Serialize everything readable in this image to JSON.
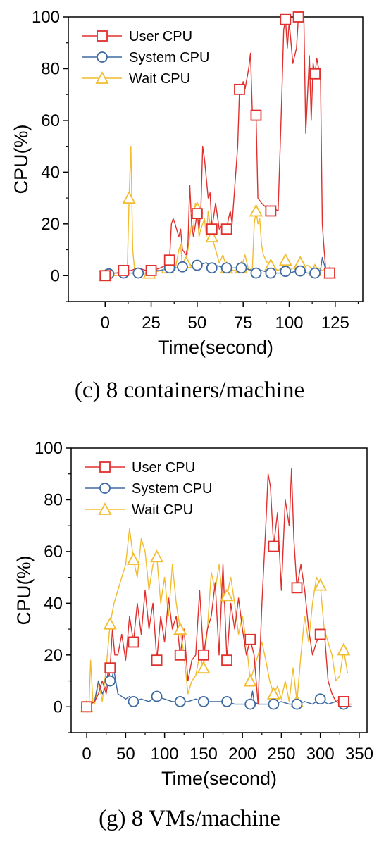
{
  "colors": {
    "user": "#e0302d",
    "system": "#3e6aa3",
    "wait": "#f2bc2e"
  },
  "chart_data": [
    {
      "type": "line",
      "caption": "(c) 8 containers/machine",
      "xlabel": "Time(second)",
      "ylabel": "CPU(%)",
      "xlim": [
        -20,
        140
      ],
      "ylim": [
        -10,
        100
      ],
      "xticks": [
        0,
        25,
        50,
        75,
        100,
        125
      ],
      "yticks": [
        0,
        20,
        40,
        60,
        80,
        100
      ],
      "legend": "top-left",
      "series": [
        {
          "name": "User CPU",
          "marker": "square",
          "x": [
            0,
            3,
            6,
            10,
            14,
            18,
            22,
            26,
            30,
            33,
            35,
            36,
            37,
            38,
            40,
            41,
            42,
            44,
            45,
            46,
            47,
            48,
            50,
            51,
            52,
            53,
            54,
            56,
            57,
            58,
            60,
            62,
            64,
            65,
            66,
            67,
            68,
            69,
            70,
            72,
            73,
            74,
            75,
            76,
            78,
            79,
            80,
            82,
            83,
            85,
            88,
            90,
            92,
            94,
            96,
            97,
            98,
            99,
            100,
            102,
            104,
            105,
            106,
            108,
            109,
            110,
            111,
            112,
            113,
            114,
            115,
            116,
            117,
            118,
            119,
            120,
            122
          ],
          "y": [
            0,
            1,
            1,
            2,
            2,
            3,
            2,
            2,
            3,
            4,
            6,
            20,
            22,
            20,
            15,
            18,
            10,
            8,
            12,
            35,
            20,
            15,
            24,
            18,
            25,
            50,
            45,
            30,
            32,
            18,
            28,
            18,
            20,
            18,
            18,
            22,
            25,
            20,
            30,
            50,
            72,
            70,
            75,
            72,
            80,
            86,
            62,
            62,
            30,
            28,
            26,
            25,
            26,
            25,
            70,
            95,
            99,
            88,
            98,
            82,
            88,
            100,
            100,
            99,
            55,
            70,
            85,
            60,
            82,
            78,
            84,
            80,
            78,
            20,
            10,
            1,
            1
          ],
          "marker_x": [
            0,
            10,
            25,
            35,
            50,
            58,
            66,
            73,
            82,
            90,
            98,
            105,
            114,
            122
          ]
        },
        {
          "name": "System CPU",
          "marker": "circle",
          "x": [
            0,
            3,
            6,
            10,
            14,
            18,
            22,
            25,
            30,
            35,
            40,
            45,
            50,
            55,
            58,
            60,
            65,
            70,
            75,
            80,
            82,
            85,
            90,
            95,
            97,
            100,
            105,
            110,
            114,
            117,
            118,
            120,
            122
          ],
          "y": [
            0,
            1,
            1,
            1,
            1,
            1,
            1,
            2,
            2,
            3,
            3,
            4,
            4,
            5,
            3,
            4,
            3,
            3,
            3,
            2,
            1,
            2,
            1,
            1,
            2,
            1,
            2,
            1,
            1,
            2,
            7,
            2,
            1
          ],
          "marker_x": [
            2,
            10,
            18,
            25,
            35,
            42,
            50,
            58,
            66,
            74,
            82,
            90,
            98,
            106,
            114,
            122
          ]
        },
        {
          "name": "Wait CPU",
          "marker": "triangle",
          "x": [
            0,
            3,
            6,
            10,
            12,
            13,
            14,
            15,
            16,
            18,
            22,
            26,
            30,
            34,
            36,
            38,
            40,
            41,
            42,
            44,
            46,
            47,
            48,
            49,
            50,
            51,
            52,
            54,
            55,
            56,
            58,
            60,
            62,
            64,
            66,
            70,
            74,
            76,
            78,
            80,
            81,
            82,
            83,
            84,
            85,
            86,
            88,
            90,
            92,
            94,
            96,
            98,
            100,
            102,
            104,
            106,
            108,
            110,
            112,
            114,
            116,
            118,
            120,
            122
          ],
          "y": [
            0,
            0,
            0,
            1,
            2,
            30,
            50,
            10,
            2,
            1,
            1,
            1,
            2,
            3,
            4,
            2,
            10,
            12,
            3,
            5,
            15,
            20,
            18,
            28,
            26,
            15,
            18,
            22,
            15,
            25,
            15,
            10,
            5,
            8,
            3,
            2,
            3,
            8,
            2,
            3,
            20,
            25,
            20,
            22,
            12,
            8,
            5,
            4,
            3,
            2,
            3,
            6,
            2,
            3,
            2,
            5,
            3,
            4,
            3,
            2,
            3,
            2,
            3,
            1
          ],
          "marker_x": [
            0,
            13,
            24,
            34,
            44,
            50,
            58,
            66,
            74,
            82,
            90,
            98,
            106,
            114,
            122
          ]
        }
      ]
    },
    {
      "type": "line",
      "caption": "(g) 8 VMs/machine",
      "xlabel": "Time(second)",
      "ylabel": "CPU(%)",
      "xlim": [
        -20,
        360
      ],
      "ylim": [
        -10,
        100
      ],
      "xticks": [
        0,
        50,
        100,
        150,
        200,
        250,
        300,
        350
      ],
      "yticks": [
        0,
        20,
        40,
        60,
        80,
        100
      ],
      "legend": "top-left",
      "series": [
        {
          "name": "User CPU",
          "marker": "square",
          "x": [
            0,
            5,
            10,
            15,
            20,
            25,
            30,
            33,
            36,
            40,
            45,
            50,
            55,
            60,
            65,
            70,
            75,
            80,
            85,
            90,
            95,
            100,
            105,
            110,
            115,
            120,
            125,
            130,
            135,
            140,
            145,
            150,
            155,
            160,
            165,
            170,
            175,
            180,
            185,
            190,
            195,
            200,
            205,
            210,
            215,
            220,
            225,
            230,
            233,
            236,
            240,
            245,
            250,
            255,
            260,
            263,
            266,
            270,
            275,
            280,
            285,
            290,
            295,
            300,
            305,
            310,
            315,
            320,
            325,
            330,
            335,
            340
          ],
          "y": [
            0,
            1,
            2,
            5,
            10,
            5,
            15,
            30,
            20,
            20,
            28,
            18,
            35,
            25,
            40,
            28,
            45,
            30,
            40,
            18,
            35,
            25,
            42,
            30,
            35,
            20,
            30,
            10,
            18,
            20,
            45,
            20,
            30,
            35,
            48,
            20,
            55,
            18,
            40,
            30,
            42,
            30,
            20,
            26,
            20,
            1,
            40,
            70,
            90,
            85,
            62,
            75,
            45,
            80,
            70,
            92,
            65,
            46,
            55,
            45,
            30,
            20,
            25,
            28,
            30,
            10,
            5,
            2,
            3,
            2,
            1,
            1
          ],
          "marker_x": [
            0,
            30,
            60,
            90,
            120,
            150,
            180,
            210,
            240,
            270,
            300,
            330
          ]
        },
        {
          "name": "System CPU",
          "marker": "circle",
          "x": [
            0,
            5,
            10,
            15,
            20,
            25,
            28,
            30,
            33,
            35,
            40,
            45,
            50,
            55,
            60,
            70,
            80,
            90,
            100,
            110,
            120,
            130,
            140,
            150,
            160,
            170,
            180,
            190,
            200,
            210,
            213,
            215,
            220,
            230,
            240,
            250,
            260,
            270,
            280,
            290,
            300,
            310,
            320,
            330,
            340
          ],
          "y": [
            0,
            1,
            2,
            10,
            5,
            8,
            15,
            10,
            12,
            14,
            5,
            4,
            3,
            4,
            2,
            3,
            2,
            4,
            3,
            2,
            2,
            2,
            3,
            2,
            2,
            2,
            2,
            1,
            1,
            1,
            6,
            2,
            1,
            1,
            1,
            2,
            1,
            1,
            2,
            1,
            3,
            1,
            2,
            1,
            0
          ],
          "marker_x": [
            0,
            30,
            60,
            90,
            120,
            150,
            180,
            210,
            240,
            270,
            300,
            330
          ]
        },
        {
          "name": "Wait CPU",
          "marker": "triangle",
          "x": [
            0,
            3,
            5,
            8,
            10,
            13,
            15,
            20,
            25,
            30,
            35,
            40,
            45,
            50,
            55,
            60,
            65,
            70,
            75,
            80,
            85,
            90,
            95,
            100,
            105,
            110,
            115,
            120,
            125,
            130,
            135,
            140,
            145,
            150,
            155,
            160,
            165,
            170,
            175,
            180,
            185,
            190,
            195,
            200,
            205,
            210,
            215,
            220,
            225,
            230,
            235,
            240,
            245,
            250,
            255,
            260,
            265,
            270,
            275,
            280,
            285,
            290,
            295,
            300,
            305,
            310,
            315,
            320,
            325,
            330,
            335
          ],
          "y": [
            0,
            1,
            18,
            2,
            1,
            5,
            10,
            2,
            15,
            32,
            40,
            45,
            50,
            55,
            69,
            57,
            50,
            65,
            60,
            45,
            55,
            58,
            40,
            50,
            35,
            55,
            40,
            30,
            20,
            5,
            10,
            12,
            20,
            15,
            30,
            52,
            45,
            55,
            40,
            43,
            50,
            40,
            28,
            35,
            25,
            10,
            15,
            20,
            25,
            18,
            10,
            5,
            8,
            3,
            10,
            2,
            15,
            2,
            20,
            35,
            25,
            40,
            50,
            47,
            30,
            25,
            20,
            10,
            12,
            22,
            13
          ],
          "marker_x": [
            0,
            30,
            60,
            90,
            120,
            150,
            180,
            210,
            240,
            270,
            300,
            330
          ]
        }
      ]
    }
  ]
}
